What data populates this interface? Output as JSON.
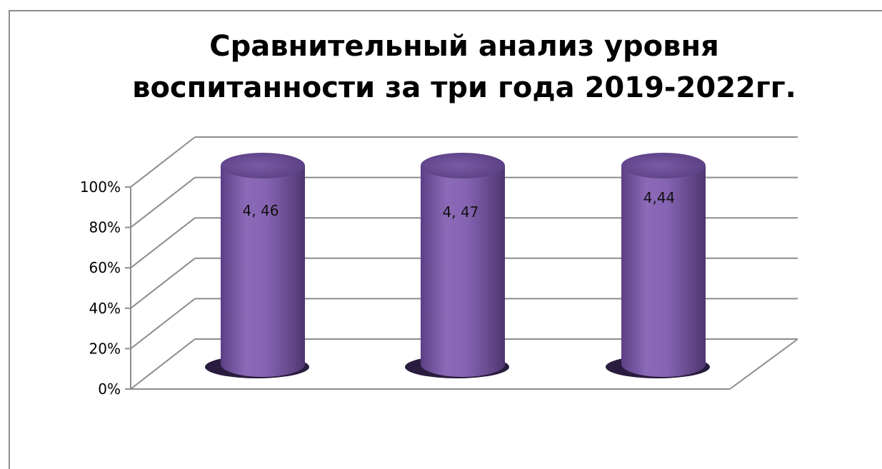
{
  "chart_data": {
    "type": "bar",
    "style": "3d-cylinder",
    "title": [
      "Сравнительный анализ уровня",
      "воспитанности за три года 2019-2022гг."
    ],
    "xlabel": "",
    "ylabel": "",
    "yticks": [
      "0%",
      "20%",
      "40%",
      "60%",
      "80%",
      "100%"
    ],
    "ylim": [
      0,
      100
    ],
    "grid": true,
    "legend": "none",
    "categories": [
      "",
      "",
      ""
    ],
    "values": [
      100,
      100,
      100
    ],
    "data_labels": [
      "4, 46",
      "4, 47",
      "4,44"
    ],
    "bar_color": "#8a68b4",
    "bar_dark_color": "#4e3670",
    "grid_color": "#8c8c8c"
  }
}
